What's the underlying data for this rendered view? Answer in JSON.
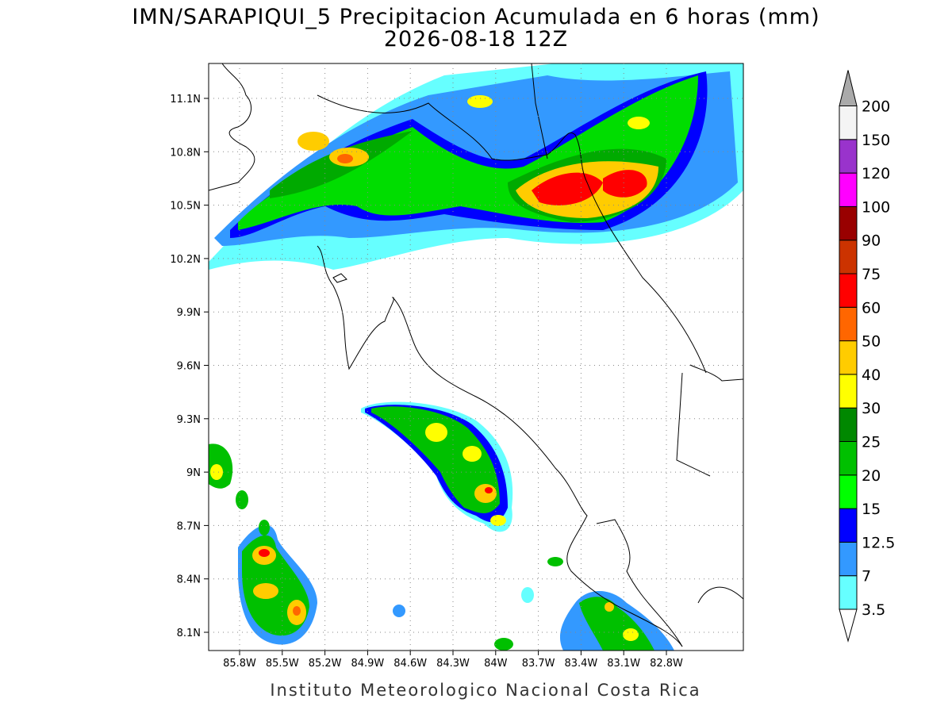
{
  "title": [
    "IMN/SARAPIQUI_5 Precipitacion Acumulada en 6 horas (mm)",
    "2026-08-18 12Z"
  ],
  "lat_labels": [
    "11.1N",
    "10.8N",
    "10.5N",
    "10.2N",
    "9.9N",
    "9.6N",
    "9.3N",
    "9N",
    "8.7N",
    "8.4N",
    "8.1N"
  ],
  "lon_labels": [
    "85.8W",
    "85.5W",
    "85.2W",
    "84.9W",
    "84.6W",
    "84.3W",
    "84W",
    "83.7W",
    "83.4W",
    "83.1W",
    "82.8W"
  ],
  "colorbar": {
    "levels": [
      "3.5",
      "7",
      "12.5",
      "15",
      "20",
      "25",
      "30",
      "40",
      "50",
      "60",
      "75",
      "90",
      "100",
      "120",
      "150",
      "200"
    ],
    "colors": [
      "#66ffff",
      "#3399ff",
      "#0000ff",
      "#00ff00",
      "#00c000",
      "#008800",
      "#ffff00",
      "#ffcc00",
      "#ff6600",
      "#ff0000",
      "#cc3300",
      "#990000",
      "#ff00ff",
      "#9933cc",
      "#f4f4f4"
    ],
    "under_color": "#ffffff",
    "over_color": "#aaaaaa"
  },
  "credit": "Instituto Meteorologico Nacional Costa Rica"
}
